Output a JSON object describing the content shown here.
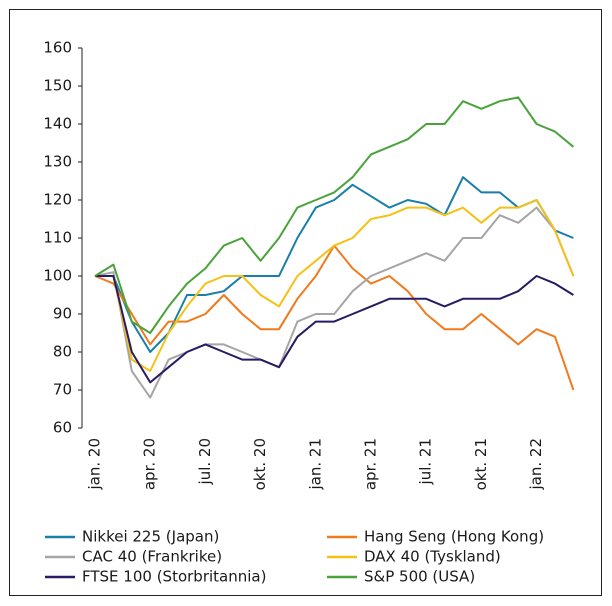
{
  "chart_data": {
    "type": "line",
    "categories": [
      "jan. 20",
      null,
      null,
      "apr. 20",
      null,
      null,
      "jul. 20",
      null,
      null,
      "okt. 20",
      null,
      null,
      "jan. 21",
      null,
      null,
      "apr. 21",
      null,
      null,
      "jul. 21",
      null,
      null,
      "okt. 21",
      null,
      null,
      "jan. 22",
      null,
      null
    ],
    "series": [
      {
        "name": "Nikkei 225 (Japan)",
        "color": "#1a7fa8",
        "values": [
          100,
          100,
          88,
          80,
          85,
          95,
          95,
          96,
          100,
          100,
          100,
          110,
          118,
          120,
          124,
          121,
          118,
          120,
          119,
          116,
          126,
          122,
          122,
          118,
          120,
          112,
          110
        ]
      },
      {
        "name": "Hang Seng (Hong Kong)",
        "color": "#f07a1e",
        "values": [
          100,
          98,
          90,
          82,
          88,
          88,
          90,
          95,
          90,
          86,
          86,
          94,
          100,
          108,
          102,
          98,
          100,
          96,
          90,
          86,
          86,
          90,
          86,
          82,
          86,
          84,
          70
        ]
      },
      {
        "name": "CAC 40 (Frankrike)",
        "color": "#a5a5a5",
        "values": [
          100,
          101,
          75,
          68,
          78,
          80,
          82,
          82,
          80,
          78,
          76,
          88,
          90,
          90,
          96,
          100,
          102,
          104,
          106,
          104,
          110,
          110,
          116,
          114,
          118,
          112,
          100
        ]
      },
      {
        "name": "DAX 40 (Tyskland)",
        "color": "#f5c116",
        "values": [
          100,
          100,
          78,
          75,
          85,
          92,
          98,
          100,
          100,
          95,
          92,
          100,
          104,
          108,
          110,
          115,
          116,
          118,
          118,
          116,
          118,
          114,
          118,
          118,
          120,
          112,
          100
        ]
      },
      {
        "name": "FTSE 100 (Storbritannia)",
        "color": "#2a1a63",
        "values": [
          100,
          100,
          80,
          72,
          76,
          80,
          82,
          80,
          78,
          78,
          76,
          84,
          88,
          88,
          90,
          92,
          94,
          94,
          94,
          92,
          94,
          94,
          94,
          96,
          100,
          98,
          95
        ]
      },
      {
        "name": "S&P 500 (USA)",
        "color": "#4aa33a",
        "values": [
          100,
          103,
          88,
          85,
          92,
          98,
          102,
          108,
          110,
          104,
          110,
          118,
          120,
          122,
          126,
          132,
          134,
          136,
          140,
          140,
          146,
          144,
          146,
          147,
          140,
          138,
          134
        ]
      }
    ],
    "ylim": [
      60,
      160
    ],
    "yticks": [
      60,
      70,
      80,
      90,
      100,
      110,
      120,
      130,
      140,
      150,
      160
    ]
  }
}
